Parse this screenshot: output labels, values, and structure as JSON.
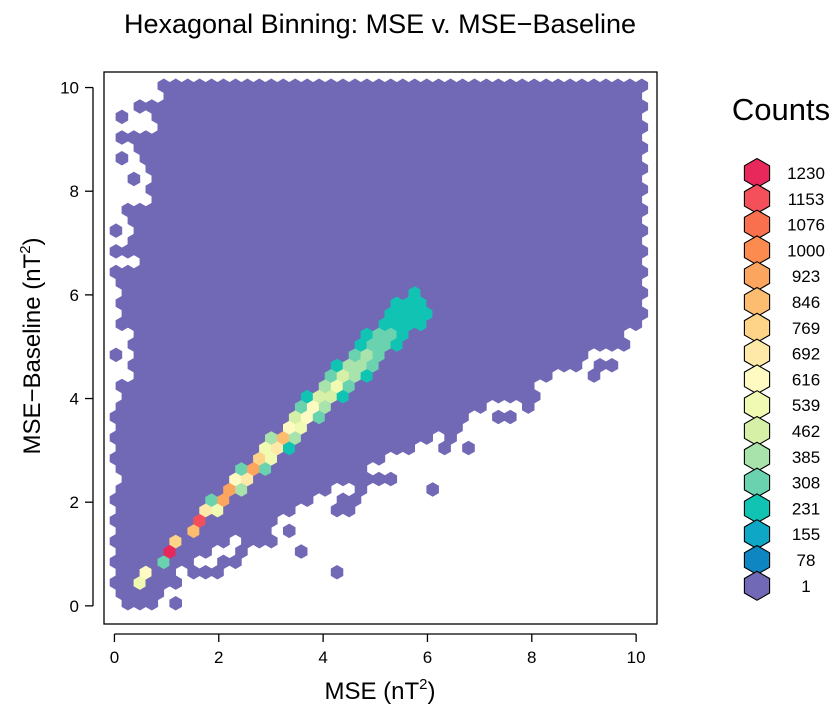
{
  "chart_data": {
    "type": "hexbin",
    "title": "Hexagonal Binning: MSE v. MSE−Baseline",
    "xlabel": {
      "text": "MSE (nT",
      "sup": "2",
      "close": ")"
    },
    "ylabel": {
      "text": "MSE−Baseline (nT",
      "sup": "2",
      "close": ")"
    },
    "xlim": [
      -0.2,
      10.4
    ],
    "ylim": [
      -0.35,
      10.3
    ],
    "xticks": [
      0,
      2,
      4,
      6,
      8,
      10
    ],
    "yticks": [
      0,
      2,
      4,
      6,
      8,
      10
    ],
    "xtick_labels": [
      "0",
      "2",
      "4",
      "6",
      "8",
      "10"
    ],
    "ytick_labels": [
      "0",
      "2",
      "4",
      "6",
      "8",
      "10"
    ],
    "grid": false,
    "legend": {
      "title": "Counts",
      "position": "right",
      "entries": [
        {
          "label": "1230",
          "color": "#E8285A"
        },
        {
          "label": "1153",
          "color": "#F4505C"
        },
        {
          "label": "1076",
          "color": "#F8704E"
        },
        {
          "label": "1000",
          "color": "#FB8B4F"
        },
        {
          "label": "923",
          "color": "#FCA55E"
        },
        {
          "label": "846",
          "color": "#FDBD71"
        },
        {
          "label": "769",
          "color": "#FED489"
        },
        {
          "label": "692",
          "color": "#FFE9A8"
        },
        {
          "label": "616",
          "color": "#FFFAC2"
        },
        {
          "label": "539",
          "color": "#F1FAB3"
        },
        {
          "label": "462",
          "color": "#D6F0A8"
        },
        {
          "label": "385",
          "color": "#A8E3AC"
        },
        {
          "label": "308",
          "color": "#6BD2B0"
        },
        {
          "label": "231",
          "color": "#11C3B3"
        },
        {
          "label": "155",
          "color": "#0EA7C6"
        },
        {
          "label": "78",
          "color": "#0E86C2"
        },
        {
          "label": "1",
          "color": "#7169B5"
        }
      ]
    },
    "series": [
      {
        "description": "bulk low-count region",
        "count_level": "1",
        "color": "#7169B5"
      },
      {
        "description": "dense ridge along y = x",
        "count_range": [
          78,
          1230
        ]
      }
    ]
  }
}
